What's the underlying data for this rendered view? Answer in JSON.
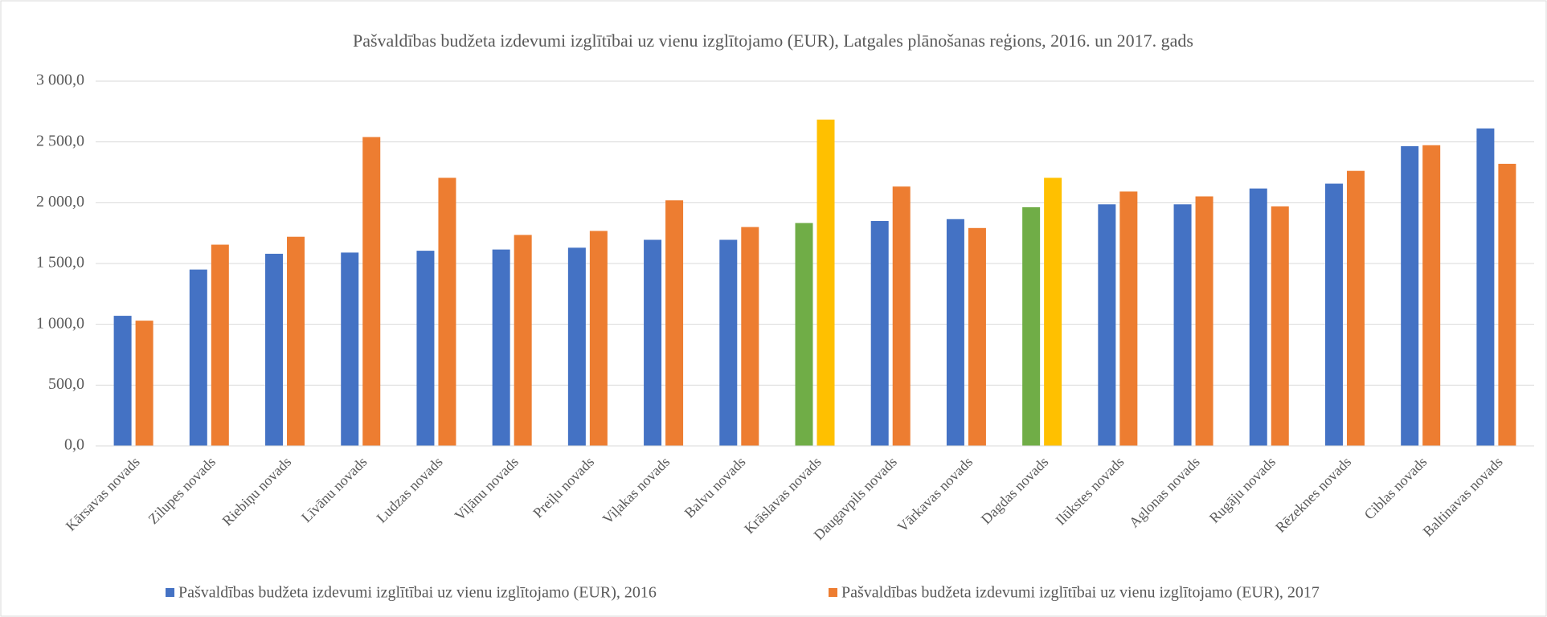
{
  "chart_data": {
    "type": "bar",
    "title": "Pašvaldības budžeta izdevumi izglītībai uz vienu izglītojamo (EUR), Latgales plānošanas reģions, 2016. un 2017. gads",
    "categories": [
      "Kārsavas novads",
      "Zilupes novads",
      "Riebiņu novads",
      "Līvānu novads",
      "Ludzas novads",
      "Viļānu novads",
      "Preiļu novads",
      "Viļakas novads",
      "Balvu novads",
      "Krāslavas novads",
      "Daugavpils novads",
      "Vārkavas novads",
      "Dagdas novads",
      "Ilūkstes novads",
      "Aglonas novads",
      "Rugāju novads",
      "Rēzeknes novads",
      "Ciblas novads",
      "Baltinavas novads"
    ],
    "series": [
      {
        "name": "Pašvaldības budžeta izdevumi izglītībai uz vienu izglītojamo (EUR), 2016",
        "color": "#4472c4",
        "values": [
          1070,
          1450,
          1580,
          1590,
          1605,
          1615,
          1630,
          1695,
          1695,
          1833,
          1850,
          1865,
          1963,
          1987,
          1987,
          2117,
          2157,
          2465,
          2611
        ],
        "colors": [
          "#4472c4",
          "#4472c4",
          "#4472c4",
          "#4472c4",
          "#4472c4",
          "#4472c4",
          "#4472c4",
          "#4472c4",
          "#4472c4",
          "#70ad47",
          "#4472c4",
          "#4472c4",
          "#70ad47",
          "#4472c4",
          "#4472c4",
          "#4472c4",
          "#4472c4",
          "#4472c4",
          "#4472c4"
        ]
      },
      {
        "name": "Pašvaldības budžeta izdevumi izglītībai uz vienu izglītojamo (EUR), 2017",
        "color": "#ed7d31",
        "values": [
          1030,
          1655,
          1720,
          2540,
          2205,
          1735,
          1768,
          2020,
          1800,
          2684,
          2133,
          1792,
          2205,
          2092,
          2052,
          1970,
          2262,
          2473,
          2320
        ],
        "colors": [
          "#ed7d31",
          "#ed7d31",
          "#ed7d31",
          "#ed7d31",
          "#ed7d31",
          "#ed7d31",
          "#ed7d31",
          "#ed7d31",
          "#ed7d31",
          "#ffc000",
          "#ed7d31",
          "#ed7d31",
          "#ffc000",
          "#ed7d31",
          "#ed7d31",
          "#ed7d31",
          "#ed7d31",
          "#ed7d31",
          "#ed7d31"
        ]
      }
    ],
    "ylim": [
      0,
      3000
    ],
    "yticks": [
      {
        "value": 0,
        "label": "0,0"
      },
      {
        "value": 500,
        "label": "500,0"
      },
      {
        "value": 1000,
        "label": "1 000,0"
      },
      {
        "value": 1500,
        "label": "1 500,0"
      },
      {
        "value": 2000,
        "label": "2 000,0"
      },
      {
        "value": 2500,
        "label": "2 500,0"
      },
      {
        "value": 3000,
        "label": "3 000,0"
      }
    ],
    "grid": true
  }
}
